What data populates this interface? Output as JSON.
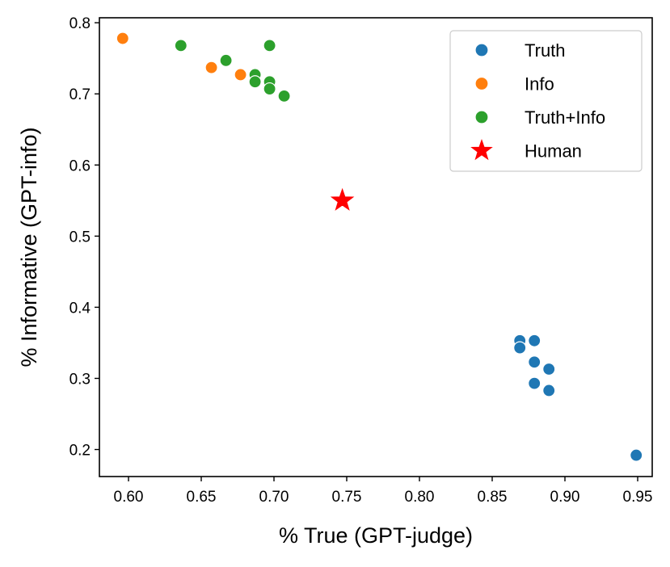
{
  "chart_data": {
    "type": "scatter",
    "title": "",
    "xlabel": "% True (GPT-judge)",
    "ylabel": "% Informative (GPT-info)",
    "xlim": [
      0.58,
      0.96
    ],
    "ylim": [
      0.162,
      0.807
    ],
    "x_ticks": [
      "0.60",
      "0.65",
      "0.70",
      "0.75",
      "0.80",
      "0.85",
      "0.90",
      "0.95"
    ],
    "y_ticks": [
      "0.2",
      "0.3",
      "0.4",
      "0.5",
      "0.6",
      "0.7",
      "0.8"
    ],
    "grid": false,
    "legend_position": "top-right",
    "series": [
      {
        "name": "Truth",
        "color": "#1f77b4",
        "marker": "circle",
        "points": [
          {
            "x": 0.869,
            "y": 0.353
          },
          {
            "x": 0.879,
            "y": 0.353
          },
          {
            "x": 0.869,
            "y": 0.343
          },
          {
            "x": 0.879,
            "y": 0.323
          },
          {
            "x": 0.889,
            "y": 0.313
          },
          {
            "x": 0.879,
            "y": 0.293
          },
          {
            "x": 0.889,
            "y": 0.283
          },
          {
            "x": 0.949,
            "y": 0.192
          }
        ]
      },
      {
        "name": "Info",
        "color": "#ff7f0e",
        "marker": "circle",
        "points": [
          {
            "x": 0.596,
            "y": 0.778
          },
          {
            "x": 0.657,
            "y": 0.737
          },
          {
            "x": 0.677,
            "y": 0.727
          }
        ]
      },
      {
        "name": "Truth+Info",
        "color": "#2ca02c",
        "marker": "circle",
        "points": [
          {
            "x": 0.636,
            "y": 0.768
          },
          {
            "x": 0.697,
            "y": 0.768
          },
          {
            "x": 0.667,
            "y": 0.747
          },
          {
            "x": 0.687,
            "y": 0.727
          },
          {
            "x": 0.687,
            "y": 0.717
          },
          {
            "x": 0.697,
            "y": 0.717
          },
          {
            "x": 0.697,
            "y": 0.707
          },
          {
            "x": 0.707,
            "y": 0.697
          }
        ]
      },
      {
        "name": "Human",
        "color": "#ff0000",
        "marker": "star",
        "points": [
          {
            "x": 0.747,
            "y": 0.55
          }
        ]
      }
    ]
  }
}
